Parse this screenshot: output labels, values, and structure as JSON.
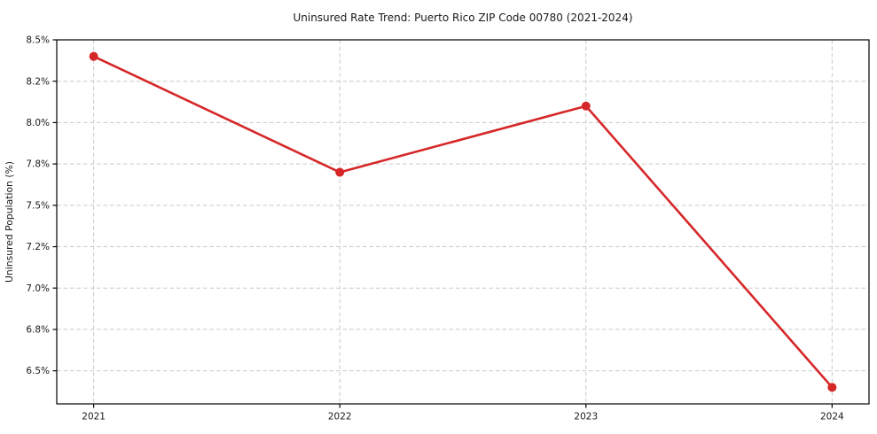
{
  "chart_data": {
    "type": "line",
    "title": "Uninsured Rate Trend: Puerto Rico ZIP Code 00780 (2021-2024)",
    "xlabel": "",
    "ylabel": "Uninsured Population (%)",
    "x": [
      2021,
      2022,
      2023,
      2024
    ],
    "x_ticks": [
      {
        "value": 2021,
        "label": "2021"
      },
      {
        "value": 2022,
        "label": "2022"
      },
      {
        "value": 2023,
        "label": "2023"
      },
      {
        "value": 2024,
        "label": "2024"
      }
    ],
    "y_ticks": [
      {
        "value": 6.5,
        "label": "6.5%"
      },
      {
        "value": 6.75,
        "label": "6.8%"
      },
      {
        "value": 7.0,
        "label": "7.0%"
      },
      {
        "value": 7.25,
        "label": "7.2%"
      },
      {
        "value": 7.5,
        "label": "7.5%"
      },
      {
        "value": 7.75,
        "label": "7.8%"
      },
      {
        "value": 8.0,
        "label": "8.0%"
      },
      {
        "value": 8.25,
        "label": "8.2%"
      },
      {
        "value": 8.5,
        "label": "8.5%"
      }
    ],
    "series": [
      {
        "name": "Uninsured Population (%)",
        "values": [
          8.4,
          7.7,
          8.1,
          6.4
        ]
      }
    ],
    "xlim": [
      2020.85,
      2024.15
    ],
    "ylim": [
      6.3,
      8.5
    ],
    "grid": true,
    "grid_style": "dashed",
    "legend": "none",
    "marker": "circle",
    "colors": {
      "line": "#d62728",
      "marker": "#d62728",
      "grid": "#c9c9c9",
      "spine": "#000000",
      "text": "#1a1a1a",
      "background": "#ffffff"
    }
  }
}
